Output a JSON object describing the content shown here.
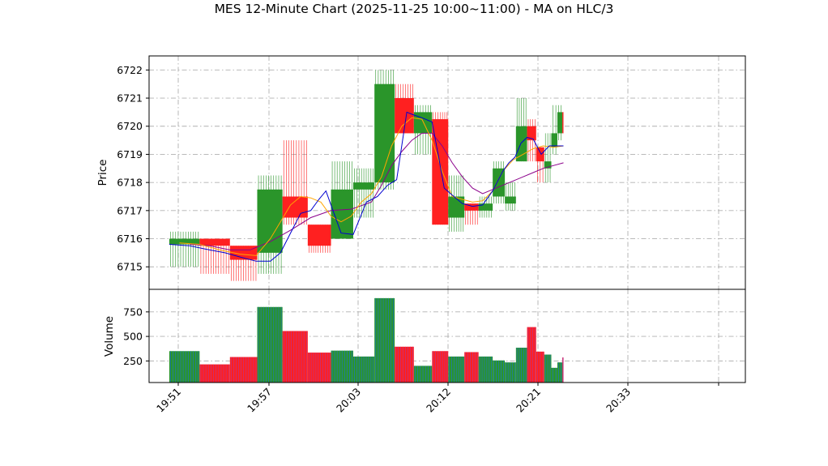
{
  "chart_data": {
    "type": "candlestick",
    "title": "MES 12-Minute Chart (2025-11-25 10:00~11:00) - MA on HLC/3",
    "price_panel": {
      "ylabel": "Price",
      "ylim": [
        6714.2,
        6722.5
      ],
      "yticks": [
        6715,
        6716,
        6717,
        6718,
        6719,
        6720,
        6721,
        6722
      ]
    },
    "volume_panel": {
      "ylabel": "Volume",
      "ylim": [
        30,
        980
      ],
      "yticks": [
        250,
        500,
        750
      ]
    },
    "x_range": [
      "19:49",
      "20:48"
    ],
    "x_ticks": [
      "19:51",
      "19:57",
      "20:03",
      "20:12",
      "20:21",
      "20:33",
      ""
    ],
    "grid": true,
    "colors": {
      "up": "#2a952a",
      "down": "#ff2020",
      "volume_up": "#1f77b4",
      "volume_down": "#c03080",
      "ma_fast": "#0000d0",
      "ma_mid": "#ffa500",
      "ma_slow": "#8b008b"
    },
    "bars": [
      {
        "t0": "19:51",
        "t1": "19:54",
        "open": 6715.8,
        "high": 6716.25,
        "low": 6715.0,
        "close": 6716.0,
        "volume": 350
      },
      {
        "t0": "19:54",
        "t1": "19:57",
        "open": 6716.0,
        "high": 6716.0,
        "low": 6714.75,
        "close": 6715.75,
        "volume": 215
      },
      {
        "t0": "19:57",
        "t1": "19:59.7",
        "open": 6715.75,
        "high": 6715.75,
        "low": 6714.5,
        "close": 6715.25,
        "volume": 290
      },
      {
        "t0": "19:59.7",
        "t1": "20:02.2",
        "open": 6715.5,
        "high": 6718.25,
        "low": 6714.75,
        "close": 6717.75,
        "volume": 800
      },
      {
        "t0": "20:02.2",
        "t1": "20:04.7",
        "open": 6717.5,
        "high": 6719.5,
        "low": 6716.5,
        "close": 6716.75,
        "volume": 555
      },
      {
        "t0": "20:04.7",
        "t1": "20:07",
        "open": 6716.5,
        "high": 6716.5,
        "low": 6715.5,
        "close": 6715.75,
        "volume": 335
      },
      {
        "t0": "20:07",
        "t1": "20:09.2",
        "open": 6716.0,
        "high": 6718.75,
        "low": 6716.0,
        "close": 6717.75,
        "volume": 355
      },
      {
        "t0": "20:09.2",
        "t1": "20:11.3",
        "open": 6717.75,
        "high": 6718.5,
        "low": 6716.75,
        "close": 6718.0,
        "volume": 295
      },
      {
        "t0": "20:11.3",
        "t1": "20:13.3",
        "open": 6718.0,
        "high": 6722.0,
        "low": 6717.75,
        "close": 6721.5,
        "volume": 890
      },
      {
        "t0": "20:13.3",
        "t1": "20:15.2",
        "open": 6721.0,
        "high": 6721.5,
        "low": 6719.75,
        "close": 6719.75,
        "volume": 395
      },
      {
        "t0": "20:15.2",
        "t1": "20:17",
        "open": 6719.75,
        "high": 6720.75,
        "low": 6719.0,
        "close": 6720.5,
        "volume": 200
      },
      {
        "t0": "20:17",
        "t1": "20:18.6",
        "open": 6720.25,
        "high": 6720.5,
        "low": 6716.5,
        "close": 6716.5,
        "volume": 350
      },
      {
        "t0": "20:18.6",
        "t1": "20:20.2",
        "open": 6716.75,
        "high": 6718.25,
        "low": 6716.25,
        "close": 6717.5,
        "volume": 295
      },
      {
        "t0": "20:20.2",
        "t1": "20:21.6",
        "open": 6717.25,
        "high": 6717.25,
        "low": 6716.5,
        "close": 6717.0,
        "volume": 340
      },
      {
        "t0": "20:21.6",
        "t1": "20:23",
        "open": 6717.0,
        "high": 6717.5,
        "low": 6716.75,
        "close": 6717.25,
        "volume": 295
      },
      {
        "t0": "20:23",
        "t1": "20:24.2",
        "open": 6717.5,
        "high": 6718.75,
        "low": 6717.25,
        "close": 6718.5,
        "volume": 255
      },
      {
        "t0": "20:24.2",
        "t1": "20:25.3",
        "open": 6717.25,
        "high": 6718.0,
        "low": 6717.0,
        "close": 6717.5,
        "volume": 235
      },
      {
        "t0": "20:25.3",
        "t1": "20:26.4",
        "open": 6718.75,
        "high": 6721.0,
        "low": 6718.75,
        "close": 6720.0,
        "volume": 385
      },
      {
        "t0": "20:26.4",
        "t1": "20:27.3",
        "open": 6720.0,
        "high": 6720.25,
        "low": 6718.75,
        "close": 6719.5,
        "volume": 595
      },
      {
        "t0": "20:27.3",
        "t1": "20:28.1",
        "open": 6719.25,
        "high": 6719.25,
        "low": 6718.0,
        "close": 6718.75,
        "volume": 345
      },
      {
        "t0": "20:28.1",
        "t1": "20:28.8",
        "open": 6718.5,
        "high": 6719.75,
        "low": 6718.0,
        "close": 6718.75,
        "volume": 315
      },
      {
        "t0": "20:28.8",
        "t1": "20:29.4",
        "open": 6719.25,
        "high": 6720.75,
        "low": 6719.0,
        "close": 6719.75,
        "volume": 180
      },
      {
        "t0": "20:29.4",
        "t1": "20:29.9",
        "open": 6719.75,
        "high": 6720.75,
        "low": 6719.5,
        "close": 6720.5,
        "volume": 235
      },
      {
        "t0": "20:29.9",
        "t1": "20:30",
        "open": 6720.5,
        "high": 6720.5,
        "low": 6719.75,
        "close": 6719.75,
        "volume": 285
      }
    ],
    "ma_fast": {
      "t": [
        "19:51",
        "19:53",
        "19:55",
        "19:56.5",
        "19:58",
        "19:59.6",
        "20:01",
        "20:02",
        "20:03",
        "20:04",
        "20:05",
        "20:05.8",
        "20:06.5",
        "20:07.2",
        "20:08",
        "20:09.2",
        "20:10.5",
        "20:11.6",
        "20:12.6",
        "20:13.5",
        "20:14.5",
        "20:15.2",
        "20:16",
        "20:17",
        "20:17.6",
        "20:18.2",
        "20:19",
        "20:20",
        "20:21",
        "20:22",
        "20:23",
        "20:24",
        "20:24.6",
        "20:25.2",
        "20:25.8",
        "20:26.4",
        "20:27",
        "20:27.8",
        "20:28.6",
        "20:29.2",
        "20:30"
      ],
      "values": [
        6715.8,
        6715.75,
        6715.6,
        6715.5,
        6715.35,
        6715.2,
        6715.2,
        6715.5,
        6716.2,
        6716.9,
        6717.0,
        6717.4,
        6717.7,
        6717.0,
        6716.2,
        6716.15,
        6717.3,
        6717.5,
        6717.9,
        6718.1,
        6720.5,
        6720.4,
        6720.3,
        6720.15,
        6719.0,
        6717.8,
        6717.55,
        6717.25,
        6717.15,
        6717.2,
        6717.7,
        6718.4,
        6718.7,
        6718.9,
        6719.4,
        6719.6,
        6719.55,
        6719.0,
        6719.3,
        6719.3,
        6719.3
      ]
    },
    "ma_mid": {
      "t": [
        "19:52",
        "19:54",
        "19:56",
        "19:58",
        "19:59.6",
        "20:01",
        "20:02",
        "20:03",
        "20:04",
        "20:05",
        "20:06",
        "20:07",
        "20:08",
        "20:09",
        "20:10",
        "20:11",
        "20:12",
        "20:13",
        "20:14",
        "20:15",
        "20:16",
        "20:17",
        "20:18",
        "20:19",
        "20:20",
        "20:21",
        "20:22",
        "20:23",
        "20:24",
        "20:25",
        "20:26",
        "20:27",
        "20:28",
        "20:29",
        "20:30"
      ],
      "values": [
        6715.85,
        6715.8,
        6715.6,
        6715.45,
        6715.4,
        6716.0,
        6716.6,
        6717.2,
        6717.5,
        6717.45,
        6717.3,
        6716.8,
        6716.6,
        6716.8,
        6717.3,
        6717.6,
        6718.2,
        6719.3,
        6720.0,
        6720.3,
        6720.25,
        6719.5,
        6718.4,
        6717.5,
        6717.4,
        6717.3,
        6717.35,
        6717.7,
        6718.4,
        6718.8,
        6719.0,
        6719.2,
        6719.3,
        6719.25,
        6719.3
      ]
    },
    "ma_slow": {
      "t": [
        "19:53",
        "19:55",
        "19:57",
        "19:59",
        "20:01",
        "20:03",
        "20:05",
        "20:07",
        "20:09",
        "20:11",
        "20:12",
        "20:13",
        "20:14",
        "20:15",
        "20:16",
        "20:17",
        "20:18",
        "20:19",
        "20:20",
        "20:21",
        "20:22",
        "20:23",
        "20:24",
        "20:25",
        "20:26",
        "20:27",
        "20:28",
        "20:29",
        "20:30"
      ],
      "values": [
        6715.8,
        6715.75,
        6715.6,
        6715.6,
        6715.9,
        6716.3,
        6716.75,
        6717.0,
        6717.05,
        6717.3,
        6717.9,
        6718.6,
        6719.1,
        6719.5,
        6719.75,
        6719.75,
        6719.3,
        6718.7,
        6718.2,
        6717.8,
        6717.6,
        6717.75,
        6717.9,
        6718.05,
        6718.2,
        6718.35,
        6718.5,
        6718.6,
        6718.7
      ]
    }
  }
}
